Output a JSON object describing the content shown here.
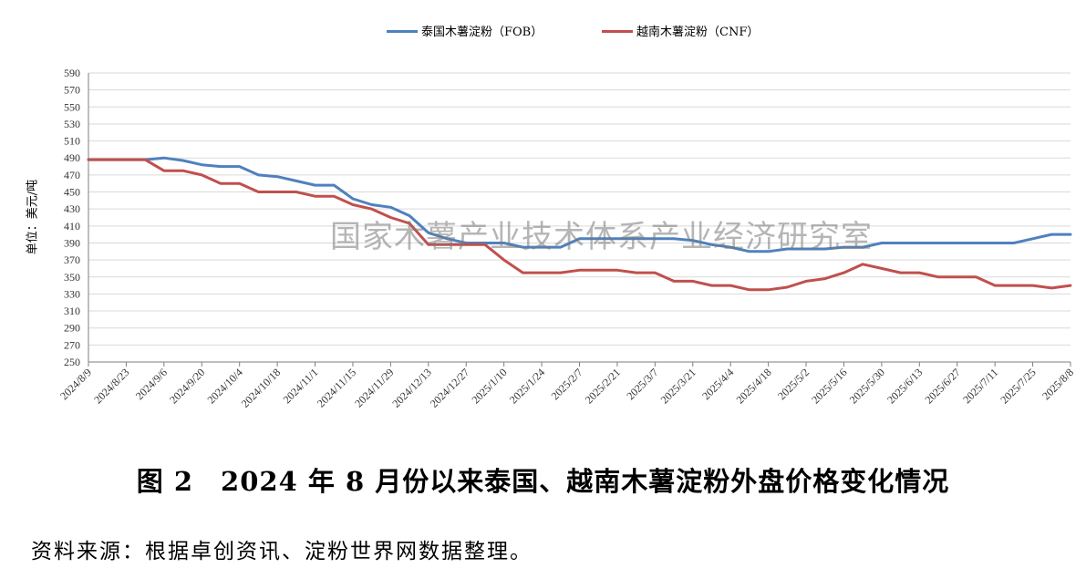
{
  "chart_data": {
    "type": "line",
    "title": "",
    "xlabel": "",
    "ylabel": "单位：美元/吨",
    "ylim": [
      250,
      590
    ],
    "yticks": [
      250,
      270,
      290,
      310,
      330,
      350,
      370,
      390,
      410,
      430,
      450,
      470,
      490,
      510,
      530,
      550,
      570,
      590
    ],
    "x_tick_labels": [
      "2024/8/9",
      "2024/8/23",
      "2024/9/6",
      "2024/9/20",
      "2024/10/4",
      "2024/10/18",
      "2024/11/1",
      "2024/11/15",
      "2024/11/29",
      "2024/12/13",
      "2024/12/27",
      "2025/1/10",
      "2025/1/24",
      "2025/2/7",
      "2025/2/21",
      "2025/3/7",
      "2025/3/21",
      "2025/4/4",
      "2025/4/18",
      "2025/5/2",
      "2025/5/16",
      "2025/5/30",
      "2025/6/13",
      "2025/6/27",
      "2025/7/11",
      "2025/7/25",
      "2025/8/8"
    ],
    "x": [
      "2024/8/9",
      "2024/8/16",
      "2024/8/23",
      "2024/8/30",
      "2024/9/6",
      "2024/9/13",
      "2024/9/20",
      "2024/9/27",
      "2024/10/4",
      "2024/10/11",
      "2024/10/18",
      "2024/10/25",
      "2024/11/1",
      "2024/11/8",
      "2024/11/15",
      "2024/11/22",
      "2024/11/29",
      "2024/12/6",
      "2024/12/13",
      "2024/12/20",
      "2024/12/27",
      "2025/1/3",
      "2025/1/10",
      "2025/1/17",
      "2025/1/24",
      "2025/1/31",
      "2025/2/7",
      "2025/2/14",
      "2025/2/21",
      "2025/2/28",
      "2025/3/7",
      "2025/3/14",
      "2025/3/21",
      "2025/3/28",
      "2025/4/4",
      "2025/4/11",
      "2025/4/18",
      "2025/4/25",
      "2025/5/2",
      "2025/5/9",
      "2025/5/16",
      "2025/5/23",
      "2025/5/30",
      "2025/6/6",
      "2025/6/13",
      "2025/6/20",
      "2025/6/27",
      "2025/7/4",
      "2025/7/11",
      "2025/7/18",
      "2025/7/25",
      "2025/8/1",
      "2025/8/8"
    ],
    "series": [
      {
        "name": "泰国木薯淀粉（FOB）",
        "color": "#4F81BD",
        "values": [
          488,
          488,
          488,
          488,
          490,
          487,
          482,
          480,
          480,
          470,
          468,
          463,
          458,
          458,
          442,
          435,
          432,
          422,
          402,
          395,
          390,
          390,
          390,
          385,
          385,
          385,
          395,
          395,
          395,
          395,
          395,
          395,
          393,
          388,
          385,
          380,
          380,
          383,
          383,
          383,
          385,
          385,
          390,
          390,
          390,
          390,
          390,
          390,
          390,
          390,
          395,
          400,
          400
        ]
      },
      {
        "name": "越南木薯淀粉（CNF）",
        "color": "#C0504D",
        "values": [
          488,
          488,
          488,
          488,
          475,
          475,
          470,
          460,
          460,
          450,
          450,
          450,
          445,
          445,
          435,
          430,
          420,
          413,
          388,
          388,
          388,
          388,
          370,
          355,
          355,
          355,
          358,
          358,
          358,
          355,
          355,
          345,
          345,
          340,
          340,
          335,
          335,
          338,
          345,
          348,
          355,
          365,
          360,
          355,
          355,
          350,
          350,
          350,
          340,
          340,
          340,
          337,
          340
        ]
      }
    ],
    "grid": true,
    "legend": "top-center"
  },
  "caption": "图 2　2024 年 8 月份以来泰国、越南木薯淀粉外盘价格变化情况",
  "source": "资料来源：根据卓创资讯、淀粉世界网数据整理。",
  "watermark": "国家木薯产业技术体系产业经济研究室"
}
